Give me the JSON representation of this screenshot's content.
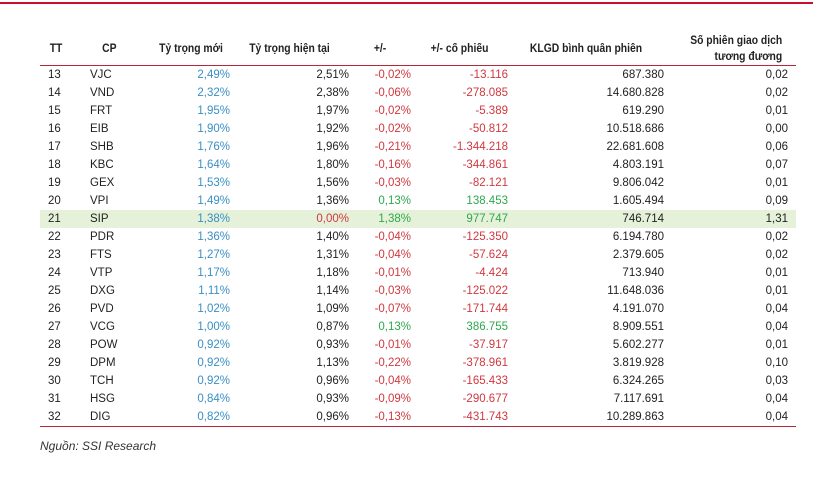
{
  "headers": [
    "TT",
    "CP",
    "Tỷ trọng mới",
    "Tỷ trọng hiện tại",
    "+/-",
    "+/- cổ phiếu",
    "KLGD bình quân phiên",
    "Số phiên giao dịch tương đương"
  ],
  "rows": [
    [
      "13",
      "VJC",
      "2,49%",
      "2,51%",
      "-0,02%",
      "-13.116",
      "687.380",
      "0,02"
    ],
    [
      "14",
      "VND",
      "2,32%",
      "2,38%",
      "-0,06%",
      "-278.085",
      "14.680.828",
      "0,02"
    ],
    [
      "15",
      "FRT",
      "1,95%",
      "1,97%",
      "-0,02%",
      "-5.389",
      "619.290",
      "0,01"
    ],
    [
      "16",
      "EIB",
      "1,90%",
      "1,92%",
      "-0,02%",
      "-50.812",
      "10.518.686",
      "0,00"
    ],
    [
      "17",
      "SHB",
      "1,76%",
      "1,96%",
      "-0,21%",
      "-1.344.218",
      "22.681.608",
      "0,06"
    ],
    [
      "18",
      "KBC",
      "1,64%",
      "1,80%",
      "-0,16%",
      "-344.861",
      "4.803.191",
      "0,07"
    ],
    [
      "19",
      "GEX",
      "1,53%",
      "1,56%",
      "-0,03%",
      "-82.121",
      "9.806.042",
      "0,01"
    ],
    [
      "20",
      "VPI",
      "1,49%",
      "1,36%",
      "0,13%",
      "138.453",
      "1.605.494",
      "0,09"
    ],
    [
      "21",
      "SIP",
      "1,38%",
      "0,00%",
      "1,38%",
      "977.747",
      "746.714",
      "1,31"
    ],
    [
      "22",
      "PDR",
      "1,36%",
      "1,40%",
      "-0,04%",
      "-125.350",
      "6.194.780",
      "0,02"
    ],
    [
      "23",
      "FTS",
      "1,27%",
      "1,31%",
      "-0,04%",
      "-57.624",
      "2.379.605",
      "0,02"
    ],
    [
      "24",
      "VTP",
      "1,17%",
      "1,18%",
      "-0,01%",
      "-4.424",
      "713.940",
      "0,01"
    ],
    [
      "25",
      "DXG",
      "1,11%",
      "1,14%",
      "-0,03%",
      "-125.022",
      "11.648.036",
      "0,01"
    ],
    [
      "26",
      "PVD",
      "1,02%",
      "1,09%",
      "-0,07%",
      "-171.744",
      "4.191.070",
      "0,04"
    ],
    [
      "27",
      "VCG",
      "1,00%",
      "0,87%",
      "0,13%",
      "386.755",
      "8.909.551",
      "0,04"
    ],
    [
      "28",
      "POW",
      "0,92%",
      "0,93%",
      "-0,01%",
      "-37.917",
      "5.602.277",
      "0,01"
    ],
    [
      "29",
      "DPM",
      "0,92%",
      "1,13%",
      "-0,22%",
      "-378.961",
      "3.819.928",
      "0,10"
    ],
    [
      "30",
      "TCH",
      "0,92%",
      "0,96%",
      "-0,04%",
      "-165.433",
      "6.324.265",
      "0,03"
    ],
    [
      "31",
      "HSG",
      "0,84%",
      "0,93%",
      "-0,09%",
      "-290.677",
      "7.117.691",
      "0,04"
    ],
    [
      "32",
      "DIG",
      "0,82%",
      "0,96%",
      "-0,13%",
      "-431.743",
      "10.289.863",
      "0,04"
    ]
  ],
  "highlight_row": "SIP",
  "source": "Nguồn: SSI Research",
  "colors": {
    "accent": "#c8102e",
    "blue": "#3a8fc4",
    "red": "#d0383f",
    "green": "#2ea84d",
    "highlight": "#e5f1d9"
  }
}
